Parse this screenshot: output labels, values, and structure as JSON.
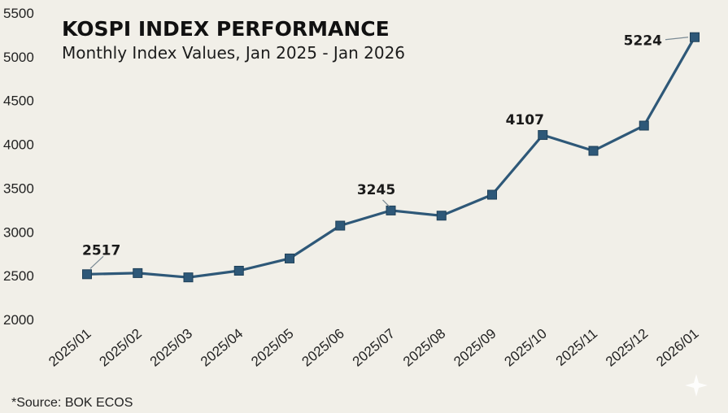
{
  "chart_data": {
    "type": "line",
    "title": "KOSPI INDEX PERFORMANCE",
    "subtitle": "Monthly Index Values, Jan 2025 - Jan 2026",
    "xlabel": "",
    "ylabel": "",
    "categories": [
      "2025/01",
      "2025/02",
      "2025/03",
      "2025/04",
      "2025/05",
      "2025/06",
      "2025/07",
      "2025/08",
      "2025/09",
      "2025/10",
      "2025/11",
      "2025/12",
      "2026/01"
    ],
    "series": [
      {
        "name": "KOSPI",
        "values": [
          2517,
          2530,
          2481,
          2557,
          2697,
          3072,
          3245,
          3186,
          3425,
          4107,
          3926,
          4214,
          5224
        ],
        "color": "#2e5878"
      }
    ],
    "ylim": [
      2000,
      5500
    ],
    "yticks": [
      2000,
      2500,
      3000,
      3500,
      4000,
      4500,
      5000,
      5500
    ],
    "annotations": [
      {
        "index": 0,
        "text": "2517"
      },
      {
        "index": 6,
        "text": "3245"
      },
      {
        "index": 9,
        "text": "4107"
      },
      {
        "index": 12,
        "text": "5224"
      }
    ],
    "grid": false,
    "source": "*Source: BOK ECOS"
  }
}
